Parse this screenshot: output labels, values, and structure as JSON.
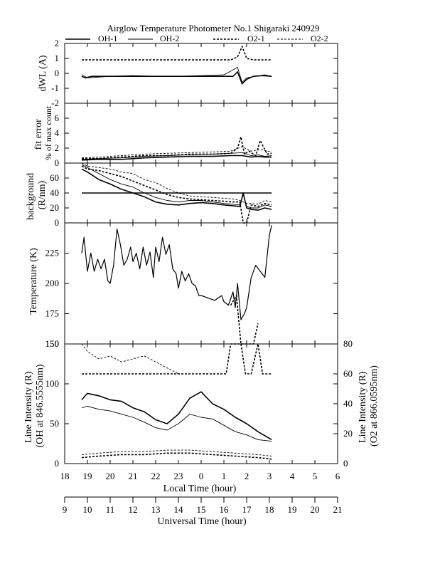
{
  "chart_data": {
    "title": "Airglow Temperature Photometer No.1  Shigaraki   240929",
    "legend": [
      "OH-1",
      "OH-2",
      "O2-1",
      "O2-2"
    ],
    "x_bottom_label": "Universal Time (hour)",
    "x_bottom_ticks": [
      "9",
      "10",
      "11",
      "12",
      "13",
      "14",
      "15",
      "16",
      "17",
      "18",
      "19",
      "20",
      "21"
    ],
    "x_top_label": "Local Time (hour)",
    "x_top_ticks": [
      "18",
      "19",
      "20",
      "21",
      "22",
      "23",
      "0",
      "1",
      "2",
      "3",
      "4",
      "5",
      "6"
    ],
    "panels": [
      {
        "type": "line",
        "ylabel": "dWL (A)",
        "ylim": [
          -2,
          2
        ],
        "yticks": [
          "2",
          "1",
          "0",
          "-1",
          "-2"
        ],
        "series": [
          {
            "name": "O2-1",
            "x": [
              9.75,
              10.5,
              11.5,
              12.5,
              13.5,
              14.5,
              15.5,
              16.3,
              16.6,
              16.8,
              17.0,
              17.3,
              17.7,
              18.1
            ],
            "y": [
              0.9,
              0.9,
              0.9,
              0.9,
              0.9,
              0.9,
              0.9,
              0.9,
              1.1,
              1.8,
              1.0,
              0.9,
              0.9,
              0.9
            ]
          },
          {
            "name": "OH-1",
            "x": [
              9.75,
              9.9,
              10.2,
              11,
              12,
              13,
              14,
              15,
              16,
              16.4,
              16.6,
              16.8,
              17.0,
              17.3,
              17.7,
              18.1
            ],
            "y": [
              -0.2,
              -0.3,
              -0.2,
              -0.2,
              -0.2,
              -0.2,
              -0.2,
              -0.2,
              -0.2,
              -0.2,
              0.1,
              -0.7,
              -0.4,
              -0.2,
              -0.15,
              -0.2
            ]
          },
          {
            "name": "OH-2",
            "x": [
              9.75,
              10,
              11,
              12,
              13,
              14,
              15,
              16,
              16.6,
              16.8,
              17.0,
              17.4,
              17.8,
              18.1
            ],
            "y": [
              -0.1,
              -0.3,
              -0.2,
              -0.15,
              -0.2,
              -0.2,
              -0.15,
              -0.1,
              0.4,
              -0.6,
              -0.3,
              -0.2,
              -0.1,
              -0.2
            ]
          }
        ]
      },
      {
        "type": "line",
        "ylabel": "fit error % of max count",
        "ylim": [
          0,
          8
        ],
        "yticks": [
          "6",
          "4",
          "2",
          "0"
        ],
        "series": [
          {
            "name": "OH-1",
            "x": [
              9.75,
              10.5,
              11.5,
              12.5,
              13.5,
              14.5,
              15.5,
              16.3,
              16.8,
              17.2,
              17.5,
              17.8,
              18.1
            ],
            "y": [
              0.4,
              0.5,
              0.5,
              0.7,
              0.8,
              0.9,
              0.9,
              1.0,
              1.0,
              0.8,
              0.9,
              0.8,
              0.8
            ]
          },
          {
            "name": "OH-2",
            "x": [
              9.75,
              10.5,
              11.5,
              12.5,
              13.5,
              14.5,
              15.5,
              16.3,
              16.8,
              17.2,
              17.5,
              17.8,
              18.1
            ],
            "y": [
              0.5,
              0.6,
              0.7,
              0.9,
              1.0,
              1.1,
              1.2,
              1.3,
              1.4,
              1.0,
              1.1,
              0.9,
              1.0
            ]
          },
          {
            "name": "O2-1",
            "x": [
              9.75,
              10.5,
              11.5,
              12.5,
              13.5,
              14.5,
              15.5,
              16.3,
              16.6,
              16.75,
              16.9,
              17.1,
              17.4,
              17.6,
              17.9,
              18.1
            ],
            "y": [
              0.6,
              0.6,
              0.8,
              1.0,
              1.0,
              1.2,
              1.2,
              1.3,
              2.0,
              3.5,
              1.2,
              1.6,
              1.0,
              3.0,
              1.2,
              1.3
            ]
          },
          {
            "name": "O2-2",
            "x": [
              9.75,
              10.5,
              11.5,
              12.5,
              13.5,
              14.5,
              15.5,
              16.3,
              16.8,
              17.2,
              17.6,
              18.1
            ],
            "y": [
              0.7,
              0.8,
              1.0,
              1.2,
              1.3,
              1.4,
              1.5,
              1.6,
              2.2,
              1.6,
              1.8,
              1.5
            ]
          }
        ]
      },
      {
        "type": "line",
        "ylabel": "background (R/nm)",
        "ylim": [
          0,
          80
        ],
        "yticks": [
          "0",
          "20",
          "40",
          "60"
        ],
        "series": [
          {
            "name": "OH-1",
            "x": [
              9.75,
              10,
              10.5,
              11,
              11.5,
              12,
              12.5,
              13,
              13.5,
              14,
              14.5,
              15,
              15.5,
              16,
              16.4,
              16.7,
              16.85,
              17.0,
              17.2,
              17.5,
              17.8,
              18.1
            ],
            "y": [
              72,
              68,
              58,
              52,
              45,
              40,
              35,
              28,
              25,
              24,
              26,
              27,
              26,
              24,
              23,
              22,
              40,
              20,
              18,
              17,
              20,
              18
            ]
          },
          {
            "name": "OH-2",
            "x": [
              9.75,
              10,
              10.5,
              11,
              11.5,
              12,
              12.5,
              13,
              13.5,
              14,
              14.5,
              15,
              15.5,
              16,
              16.4,
              16.7,
              16.85,
              17.0,
              17.2,
              17.5,
              17.8,
              18.1
            ],
            "y": [
              78,
              74,
              66,
              58,
              52,
              48,
              40,
              34,
              30,
              28,
              30,
              30,
              28,
              26,
              25,
              24,
              38,
              22,
              20,
              20,
              24,
              22
            ]
          },
          {
            "name": "O2-1",
            "x": [
              9.75,
              10,
              10.5,
              11,
              11.5,
              12,
              12.5,
              13,
              13.5,
              14,
              14.5,
              15,
              15.5,
              16,
              16.4,
              16.7,
              16.85,
              17.0,
              17.2,
              17.5,
              17.8,
              18.1
            ],
            "y": [
              76,
              72,
              70,
              66,
              62,
              56,
              50,
              44,
              38,
              34,
              32,
              31,
              30,
              29,
              28,
              28,
              0,
              0,
              24,
              22,
              26,
              24
            ]
          },
          {
            "name": "O2-2",
            "x": [
              9.75,
              10,
              10.5,
              11,
              11.5,
              12,
              12.5,
              13,
              13.5,
              14,
              14.5,
              15,
              15.5,
              16,
              16.4,
              16.7,
              16.85,
              17.0,
              17.2,
              17.5,
              17.8,
              18.1
            ],
            "y": [
              80,
              76,
              74,
              72,
              68,
              66,
              58,
              54,
              46,
              40,
              36,
              35,
              34,
              33,
              32,
              30,
              28,
              26,
              26,
              25,
              30,
              28
            ]
          },
          {
            "name": "reference",
            "x": [
              9.75,
              18.1
            ],
            "y": [
              40,
              40
            ]
          }
        ]
      },
      {
        "type": "line",
        "ylabel": "Temperature (K)",
        "ylim": [
          150,
          250
        ],
        "yticks": [
          "150",
          "175",
          "200",
          "225"
        ],
        "series": [
          {
            "name": "OH",
            "x": [
              9.75,
              9.85,
              10,
              10.15,
              10.3,
              10.45,
              10.6,
              10.75,
              10.9,
              11.0,
              11.15,
              11.3,
              11.45,
              11.6,
              11.75,
              11.9,
              12.0,
              12.15,
              12.3,
              12.45,
              12.6,
              12.75,
              12.9,
              13.0,
              13.15,
              13.3,
              13.45,
              13.6,
              13.75,
              13.9,
              14.0,
              14.15,
              14.3,
              14.45,
              14.6,
              14.75,
              14.9,
              15.0,
              15.3,
              15.6,
              15.9,
              16.0,
              16.2,
              16.4,
              16.5,
              16.6,
              16.75,
              16.9,
              17.0,
              17.2,
              17.4,
              17.6,
              17.8,
              18.0,
              18.1
            ],
            "y": [
              225,
              238,
              210,
              225,
              210,
              220,
              212,
              220,
              202,
              200,
              215,
              245,
              232,
              215,
              220,
              230,
              218,
              225,
              212,
              230,
              215,
              226,
              205,
              230,
              218,
              238,
              224,
              232,
              212,
              208,
              196,
              210,
              202,
              208,
              200,
              198,
              190,
              190,
              188,
              186,
              190,
              185,
              182,
              193,
              180,
              200,
              170,
              175,
              180,
              205,
              215,
              210,
              205,
              240,
              248
            ]
          },
          {
            "name": "O2",
            "x": [
              16.3,
              16.55,
              16.75,
              16.95,
              17.1,
              17.3,
              17.5
            ],
            "y": [
              182,
              190,
              150,
              150,
              150,
              150,
              167
            ]
          }
        ]
      },
      {
        "type": "line",
        "ylabel": "Line Intensity (R) (OH at 846.5555nm)",
        "ylabel_right": "Line Intensity (R) (O2 at 866.0595nm)",
        "ylim": [
          0,
          150
        ],
        "yticks": [
          "0",
          "50",
          "100",
          "150"
        ],
        "ylim_right": [
          0,
          80
        ],
        "yticks_right": [
          "0",
          "20",
          "40",
          "60",
          "80"
        ],
        "series": [
          {
            "name": "OH-1",
            "axis": "left",
            "x": [
              9.75,
              10,
              10.5,
              11,
              11.5,
              12,
              12.5,
              13,
              13.5,
              14,
              14.5,
              15,
              15.5,
              16,
              16.5,
              17,
              17.5,
              18.1
            ],
            "y": [
              80,
              88,
              85,
              80,
              78,
              70,
              65,
              55,
              50,
              62,
              82,
              90,
              75,
              68,
              58,
              50,
              40,
              30
            ]
          },
          {
            "name": "OH-2",
            "axis": "left",
            "x": [
              9.75,
              10,
              10.5,
              11,
              11.5,
              12,
              12.5,
              13,
              13.5,
              14,
              14.5,
              15,
              15.5,
              16,
              16.5,
              17,
              17.5,
              18.1
            ],
            "y": [
              70,
              72,
              68,
              66,
              62,
              58,
              52,
              45,
              42,
              50,
              62,
              58,
              56,
              48,
              40,
              36,
              30,
              28
            ]
          },
          {
            "name": "O2-1",
            "axis": "right",
            "x": [
              9.75,
              10.5,
              11.5,
              12.5,
              13.5,
              14.5,
              15.5,
              16.5,
              17.5,
              18.1
            ],
            "y": [
              4,
              5,
              6,
              6,
              7,
              7,
              6,
              5,
              4,
              3
            ]
          },
          {
            "name": "O2-2",
            "axis": "right",
            "x": [
              9.75,
              10.5,
              11.5,
              12.5,
              13.5,
              14.5,
              15.5,
              16.5,
              17.5,
              18.1
            ],
            "y": [
              6,
              7,
              8,
              8,
              9,
              9,
              8,
              7,
              6,
              5
            ]
          },
          {
            "name": "O2-1",
            "axis": "right",
            "x": [
              9.75,
              16.1,
              16.3,
              16.55,
              16.75,
              16.95,
              17.2,
              17.5,
              17.7,
              18.1
            ],
            "y": [
              60,
              60,
              80,
              80,
              80,
              60,
              60,
              80,
              60,
              60
            ]
          },
          {
            "name": "O2-2",
            "axis": "right",
            "x": [
              9.75,
              10,
              10.5,
              11,
              11.5,
              12,
              12.5,
              13,
              13.5,
              14
            ],
            "y": [
              80,
              75,
              70,
              72,
              68,
              70,
              72,
              68,
              64,
              60
            ]
          }
        ]
      }
    ]
  }
}
